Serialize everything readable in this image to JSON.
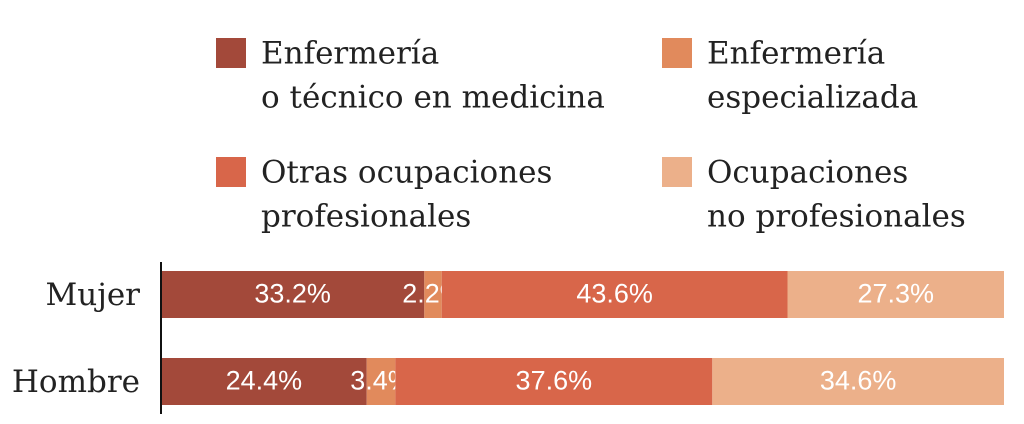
{
  "chart_data": {
    "type": "bar",
    "orientation": "horizontal",
    "stacked": true,
    "categories": [
      "Mujer",
      "Hombre"
    ],
    "series": [
      {
        "name": [
          "Enfermería",
          "o técnico en medicina"
        ],
        "values": [
          33.2,
          24.4
        ],
        "labels": [
          "33.2%",
          "24.4%"
        ],
        "color": "#a3493a"
      },
      {
        "name": [
          "Enfermería",
          "especializada"
        ],
        "values": [
          2.2,
          3.4
        ],
        "labels": [
          "2.2%",
          "3.4%"
        ],
        "color": "#e18a5c"
      },
      {
        "name": [
          "Otras ocupaciones",
          "profesionales"
        ],
        "values": [
          43.6,
          37.6
        ],
        "labels": [
          "43.6%",
          "37.6%"
        ],
        "color": "#d8664a"
      },
      {
        "name": [
          "Ocupaciones",
          "no profesionales"
        ],
        "values": [
          27.3,
          34.6
        ],
        "labels": [
          "27.3%",
          "34.6%"
        ],
        "color": "#ecb08a"
      }
    ],
    "legend_position": "top",
    "legend_columns": 2,
    "grid": false
  }
}
